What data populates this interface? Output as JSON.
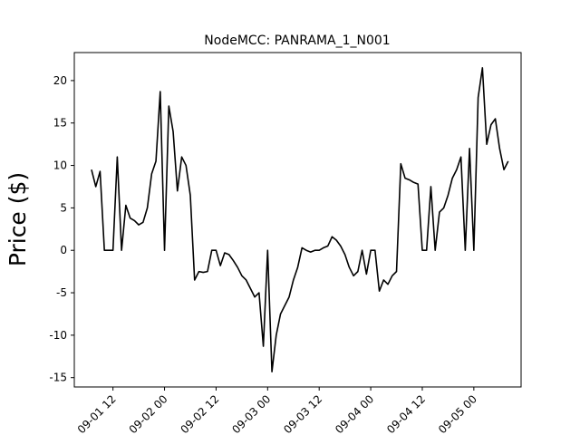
{
  "chart_data": {
    "type": "line",
    "title": "NodeMCC: PANRAMA_1_N001",
    "y_label": "Price ($)",
    "x": [
      "09-01 07",
      "09-01 08",
      "09-01 09",
      "09-01 10",
      "09-01 11",
      "09-01 12",
      "09-01 13",
      "09-01 14",
      "09-01 15",
      "09-01 16",
      "09-01 17",
      "09-01 18",
      "09-01 19",
      "09-01 20",
      "09-01 21",
      "09-01 22",
      "09-01 23",
      "09-02 00",
      "09-02 01",
      "09-02 02",
      "09-02 03",
      "09-02 04",
      "09-02 05",
      "09-02 06",
      "09-02 07",
      "09-02 08",
      "09-02 09",
      "09-02 10",
      "09-02 11",
      "09-02 12",
      "09-02 13",
      "09-02 14",
      "09-02 15",
      "09-02 16",
      "09-02 17",
      "09-02 18",
      "09-02 19",
      "09-02 20",
      "09-02 21",
      "09-02 22",
      "09-02 23",
      "09-03 00",
      "09-03 01",
      "09-03 02",
      "09-03 03",
      "09-03 04",
      "09-03 05",
      "09-03 06",
      "09-03 07",
      "09-03 08",
      "09-03 09",
      "09-03 10",
      "09-03 11",
      "09-03 12",
      "09-03 13",
      "09-03 14",
      "09-03 15",
      "09-03 16",
      "09-03 17",
      "09-03 18",
      "09-03 19",
      "09-03 20",
      "09-03 21",
      "09-03 22",
      "09-03 23",
      "09-04 00",
      "09-04 01",
      "09-04 02",
      "09-04 03",
      "09-04 04",
      "09-04 05",
      "09-04 06",
      "09-04 07",
      "09-04 08",
      "09-04 09",
      "09-04 10",
      "09-04 11",
      "09-04 12",
      "09-04 13",
      "09-04 14",
      "09-04 15",
      "09-04 16",
      "09-04 17",
      "09-04 18",
      "09-04 19",
      "09-04 20",
      "09-04 21",
      "09-04 22",
      "09-04 23",
      "09-05 00",
      "09-05 01",
      "09-05 02",
      "09-05 03",
      "09-05 04",
      "09-05 05",
      "09-05 06",
      "09-05 07",
      "09-05 08"
    ],
    "series": [
      {
        "name": "PANRAMA_1_N001",
        "color": "#000000",
        "values": [
          9.5,
          7.5,
          9.3,
          0,
          0,
          0,
          11,
          0,
          5.3,
          3.8,
          3.5,
          3,
          3.3,
          5,
          9,
          10.5,
          18.7,
          0,
          17,
          14,
          7,
          11,
          10,
          6.5,
          -3.5,
          -2.5,
          -2.6,
          -2.5,
          0,
          0,
          -1.8,
          -0.3,
          -0.5,
          -1.2,
          -2,
          -3,
          -3.5,
          -4.5,
          -5.5,
          -5,
          -11.3,
          0,
          -14.3,
          -10,
          -7.5,
          -6.5,
          -5.5,
          -3.5,
          -2,
          0.3,
          0,
          -0.2,
          0,
          0,
          0.3,
          0.5,
          1.6,
          1.2,
          0.5,
          -0.5,
          -2,
          -3,
          -2.5,
          0,
          -2.8,
          0,
          0,
          -4.8,
          -3.5,
          -4,
          -3,
          -2.5,
          10.2,
          8.5,
          8.3,
          8,
          7.8,
          0,
          0,
          7.5,
          0,
          4.5,
          5,
          6.5,
          8.5,
          9.5,
          11,
          0,
          12,
          0,
          18,
          21.5,
          12.5,
          14.8,
          15.5,
          12,
          9.5,
          10.5
        ]
      }
    ],
    "xlim": [
      "09-01 03",
      "09-05 11"
    ],
    "xticks": [
      "09-01 12",
      "09-02 00",
      "09-02 12",
      "09-03 00",
      "09-03 12",
      "09-04 00",
      "09-04 12",
      "09-05 00"
    ],
    "ylim": [
      -16.1,
      23.3
    ],
    "yticks": [
      -15,
      -10,
      -5,
      0,
      5,
      10,
      15,
      20
    ]
  }
}
